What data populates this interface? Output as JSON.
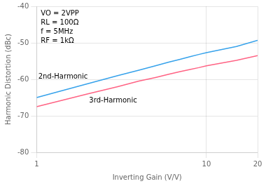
{
  "chart_data": {
    "type": "line",
    "xlabel": "Inverting Gain (V/V)",
    "ylabel": "Harmonic Distortion (dBc)",
    "x": [
      1,
      2,
      3,
      4,
      5,
      6,
      7,
      8,
      9,
      10,
      15,
      20
    ],
    "series": [
      {
        "name": "2nd-Harmonic",
        "values": [
          -65.0,
          -61.2,
          -59.0,
          -57.5,
          -56.3,
          -55.3,
          -54.5,
          -53.8,
          -53.2,
          -52.7,
          -51.0,
          -49.3
        ]
      },
      {
        "name": "3rd-Harmonic",
        "values": [
          -67.5,
          -64.0,
          -62.0,
          -60.5,
          -59.5,
          -58.6,
          -57.9,
          -57.3,
          -56.8,
          -56.3,
          -54.8,
          -53.5
        ]
      }
    ],
    "log": "x",
    "xlim": [
      1,
      20
    ],
    "xticks": [
      1,
      10,
      20
    ],
    "ylim": [
      -80,
      -40
    ],
    "yticks": [
      -80,
      -70,
      -60,
      -50,
      -40
    ],
    "grid": true,
    "annotations": [
      "VO = 2VPP",
      "RL = 100Ω",
      "f = 5MHz",
      "RF = 1kΩ"
    ]
  }
}
